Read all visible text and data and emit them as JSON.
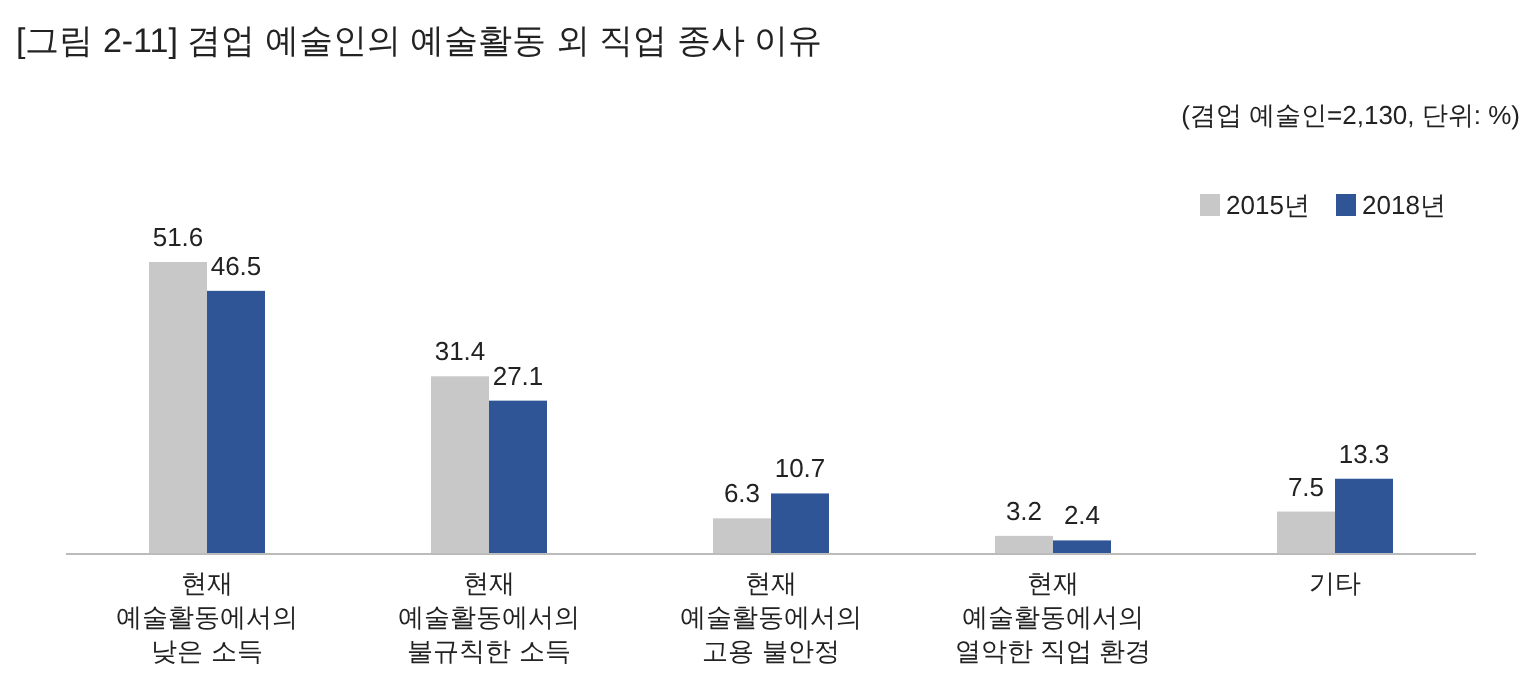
{
  "chart_data": {
    "type": "bar",
    "title": "[그림 2-11] 겸업 예술인의 예술활동 외 직업 종사 이유",
    "subtitle": "(겸업 예술인=2,130, 단위: %)",
    "categories": [
      "현재\n예술활동에서의\n낮은 소득",
      "현재\n예술활동에서의\n불규칙한 소득",
      "현재\n예술활동에서의\n고용 불안정",
      "현재\n예술활동에서의\n열악한 직업 환경",
      "기타"
    ],
    "series": [
      {
        "name": "2015년",
        "color": "#c8c8c8",
        "values": [
          51.6,
          31.4,
          6.3,
          3.2,
          7.5
        ]
      },
      {
        "name": "2018년",
        "color": "#2f5597",
        "values": [
          46.5,
          27.1,
          10.7,
          2.4,
          13.3
        ]
      }
    ],
    "data_labels": true,
    "legend": "top right"
  }
}
